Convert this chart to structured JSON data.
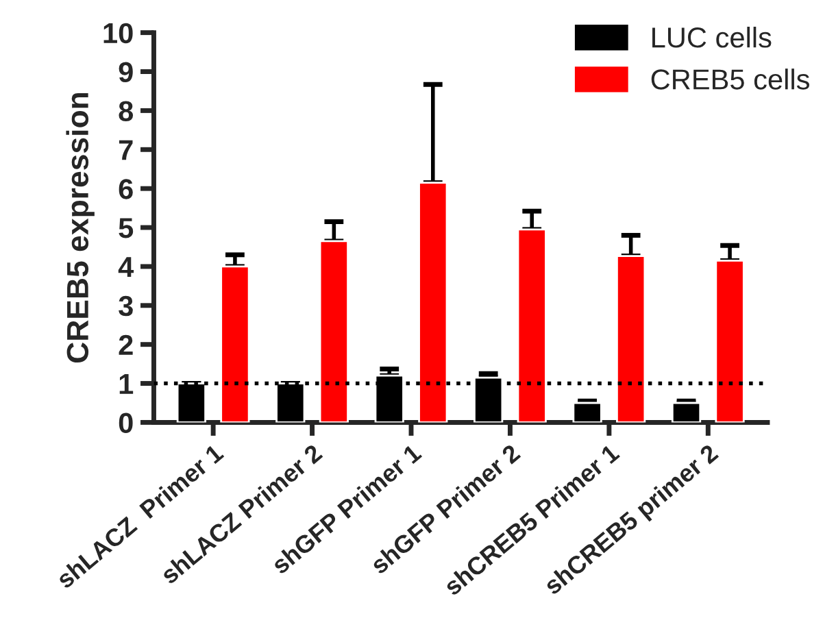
{
  "chart_data": {
    "type": "bar",
    "ylabel": "CREB5 expression",
    "categories": [
      "shLACZ  Primer 1",
      "shLACZ Primer 2",
      "shGFP Primer 1",
      "shGFP Primer 2",
      "shCREB5 Primer 1",
      "shCREB5 primer 2"
    ],
    "series": [
      {
        "name": "LUC cells",
        "color": "#000000",
        "values": [
          1.0,
          1.0,
          1.2,
          1.15,
          0.5,
          0.5
        ],
        "errors": [
          [
            1.0,
            1.0
          ],
          [
            1.0,
            1.0
          ],
          [
            1.2,
            1.37
          ],
          [
            1.15,
            1.25
          ],
          [
            0.5,
            0.55
          ],
          [
            0.5,
            0.55
          ]
        ]
      },
      {
        "name": "CREB5 cells",
        "color": "#ff0000",
        "values": [
          4.0,
          4.65,
          6.15,
          4.95,
          4.27,
          4.15
        ],
        "errors": [
          [
            4.0,
            4.3
          ],
          [
            4.65,
            5.15
          ],
          [
            6.15,
            8.67
          ],
          [
            4.95,
            5.42
          ],
          [
            4.27,
            4.8
          ],
          [
            4.15,
            4.54
          ]
        ]
      }
    ],
    "ylim": [
      0,
      10
    ],
    "yticks": [
      0,
      1,
      2,
      3,
      4,
      5,
      6,
      7,
      8,
      9,
      10
    ],
    "ref_lines": [
      {
        "axis": "y",
        "value": 1,
        "line_style": "dotted",
        "color": "#000000"
      }
    ],
    "legend": "top right",
    "grid": false
  }
}
